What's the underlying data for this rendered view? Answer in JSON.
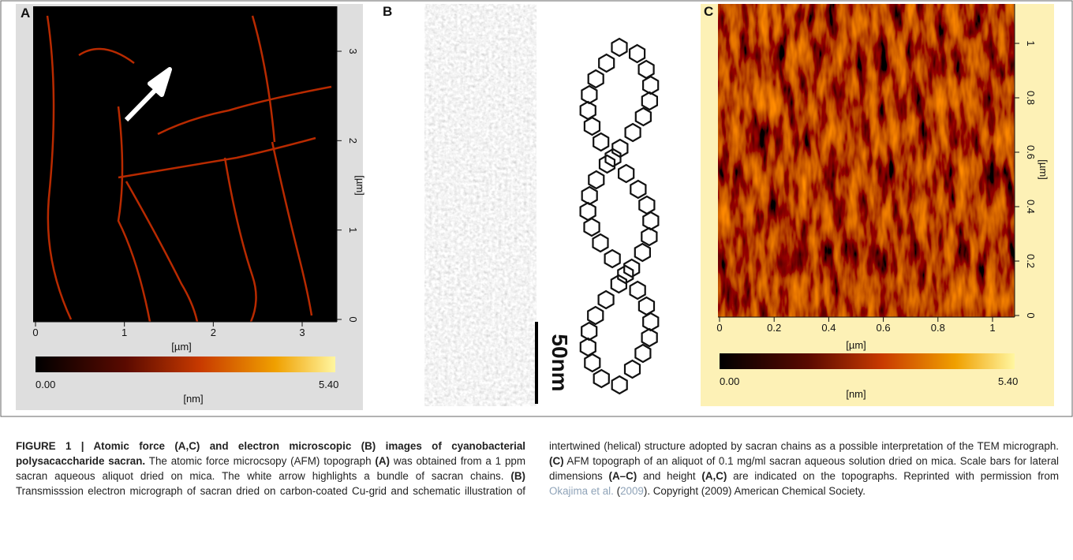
{
  "figure": {
    "panel_a": {
      "label": "A",
      "yticks": [
        "0",
        "1",
        "2",
        "3"
      ],
      "xticks": [
        "0",
        "1",
        "2",
        "3"
      ],
      "y_unit": "[µm]",
      "x_unit": "[µm]",
      "cbar_min": "0.00",
      "cbar_max": "5.40",
      "cbar_unit": "[nm]"
    },
    "panel_b": {
      "label": "B",
      "scale_bar": "50nm"
    },
    "panel_c": {
      "label": "C",
      "yticks": [
        "0",
        "0.2",
        "0.4",
        "0.6",
        "0.8",
        "1"
      ],
      "xticks": [
        "0",
        "0.2",
        "0.4",
        "0.6",
        "0.8",
        "1"
      ],
      "y_unit": "[µm]",
      "x_unit": "[µm]",
      "cbar_min": "0.00",
      "cbar_max": "5.40",
      "cbar_unit": "[nm]"
    }
  },
  "caption": {
    "runs": [
      "FIGURE 1 | Atomic force (A,C) and electron microscopic (B) images of cyanobacterial polysacaccharide sacran.",
      " The atomic force microcsopy (AFM) topograph ",
      "(A)",
      " was obtained from a 1 ppm sacran aqueous aliquot dried on mica. The white arrow highlights a bundle of sacran chains. ",
      "(B)",
      " Transmisssion electron micrograph of sacran dried on carbon-coated Cu-grid and schematic illustration of intertwined (helical) structure adopted by sacran chains as a possible interpretation of the TEM micrograph. ",
      "(C)",
      " AFM topograph of an aliquot of 0.1 mg/ml sacran aqueous solution dried on mica. Scale bars for lateral dimensions ",
      "(A–C)",
      " and height ",
      "(A,C)",
      " are indicated on the topographs. Reprinted with permission from ",
      "Okajima et al.",
      " (",
      "2009",
      "). Copyright (2009) American Chemical Society."
    ]
  }
}
